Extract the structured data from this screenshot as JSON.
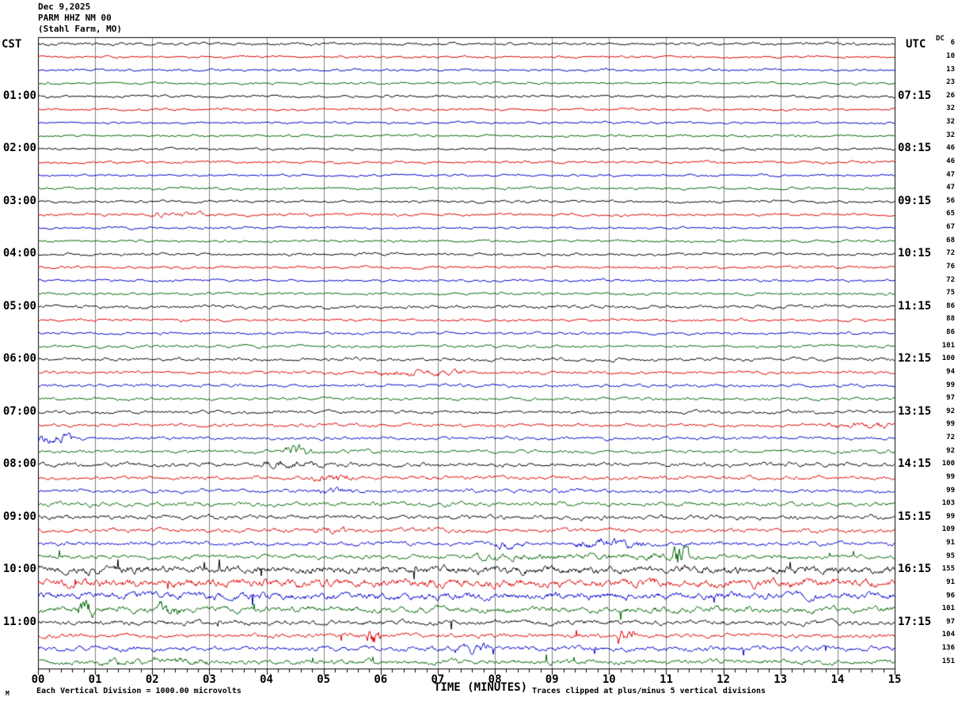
{
  "title": {
    "date": "Dec 9,2025",
    "station": "PARM HHZ NM 00",
    "location": "(Stahl Farm, MO)"
  },
  "axes": {
    "left_header": "CST",
    "right_header": "UTC",
    "dc_header": "DC",
    "x_title": "TIME (MINUTES)",
    "x_labels": [
      "00",
      "01",
      "02",
      "03",
      "04",
      "05",
      "06",
      "07",
      "08",
      "09",
      "10",
      "11",
      "12",
      "13",
      "14",
      "15"
    ]
  },
  "footer": {
    "scale_note": "Each Vertical Division = 1000.00 microvolts",
    "clip_note": "Traces clipped at plus/minus 5 vertical divisions",
    "watermark": "M"
  },
  "colors": {
    "trace_cycle": [
      "#000000",
      "#dd0000",
      "#0000cc",
      "#006600"
    ],
    "trace_cycle_names": [
      "black",
      "red",
      "blue",
      "green"
    ],
    "grid": "#808080",
    "border": "#000000",
    "background": "#ffffff"
  },
  "chart_data": {
    "type": "line",
    "subtype": "seismogram-helicorder",
    "title": "Dec 9,2025 PARM HHZ NM 00 (Stahl Farm, MO)",
    "xlabel": "TIME (MINUTES)",
    "x_range_minutes": [
      0,
      15
    ],
    "major_tick_every_minutes": 1,
    "minor_ticks_per_major": 5,
    "minutes_per_trace_line": 15,
    "row_fields": "cst = left CST hour label, utc = right UTC label, dc = right DC offset value, c = color index into colors.trace_cycle, a = noise amplitude (relative), b = bursts [{m:start minute, w:width minutes, f:amplitude factor}], s = spike probability",
    "rows": [
      {
        "dc": 6,
        "c": 0,
        "a": 1.1
      },
      {
        "dc": 10,
        "c": 1,
        "a": 0.9
      },
      {
        "dc": 13,
        "c": 2,
        "a": 0.9
      },
      {
        "dc": 23,
        "c": 3,
        "a": 0.95
      },
      {
        "cst": "01:00",
        "utc": "07:15",
        "dc": 26,
        "c": 0,
        "a": 1.0
      },
      {
        "dc": 32,
        "c": 1,
        "a": 0.95
      },
      {
        "dc": 32,
        "c": 2,
        "a": 0.9
      },
      {
        "dc": 32,
        "c": 3,
        "a": 0.95
      },
      {
        "cst": "02:00",
        "utc": "08:15",
        "dc": 46,
        "c": 0,
        "a": 1.0
      },
      {
        "dc": 46,
        "c": 1,
        "a": 1.0
      },
      {
        "dc": 47,
        "c": 2,
        "a": 0.9
      },
      {
        "dc": 47,
        "c": 3,
        "a": 1.0
      },
      {
        "cst": "03:00",
        "utc": "09:15",
        "dc": 56,
        "c": 0,
        "a": 1.05
      },
      {
        "dc": 65,
        "c": 1,
        "a": 1.05,
        "b": [
          {
            "m": 1.9,
            "w": 1.2,
            "f": 1.9
          }
        ]
      },
      {
        "dc": 67,
        "c": 2,
        "a": 0.95
      },
      {
        "dc": 68,
        "c": 3,
        "a": 1.0
      },
      {
        "cst": "04:00",
        "utc": "10:15",
        "dc": 72,
        "c": 0,
        "a": 1.1
      },
      {
        "dc": 76,
        "c": 1,
        "a": 1.05
      },
      {
        "dc": 72,
        "c": 2,
        "a": 0.95
      },
      {
        "dc": 75,
        "c": 3,
        "a": 1.05
      },
      {
        "cst": "05:00",
        "utc": "11:15",
        "dc": 86,
        "c": 0,
        "a": 1.4
      },
      {
        "dc": 88,
        "c": 1,
        "a": 1.1
      },
      {
        "dc": 86,
        "c": 2,
        "a": 1.1
      },
      {
        "dc": 101,
        "c": 3,
        "a": 1.15
      },
      {
        "cst": "06:00",
        "utc": "12:15",
        "dc": 100,
        "c": 0,
        "a": 1.35
      },
      {
        "dc": 94,
        "c": 1,
        "a": 1.25,
        "b": [
          {
            "m": 5.9,
            "w": 1.6,
            "f": 2.0
          }
        ]
      },
      {
        "dc": 99,
        "c": 2,
        "a": 1.2
      },
      {
        "dc": 97,
        "c": 3,
        "a": 1.2
      },
      {
        "cst": "07:00",
        "utc": "13:15",
        "dc": 92,
        "c": 0,
        "a": 1.4
      },
      {
        "dc": 99,
        "c": 1,
        "a": 1.3,
        "b": [
          {
            "m": 13.8,
            "w": 1.1,
            "f": 2.3
          }
        ]
      },
      {
        "dc": 72,
        "c": 2,
        "a": 1.3,
        "b": [
          {
            "m": 0.0,
            "w": 0.6,
            "f": 3.0
          }
        ]
      },
      {
        "dc": 92,
        "c": 3,
        "a": 1.35,
        "b": [
          {
            "m": 4.3,
            "w": 0.5,
            "f": 3.5
          }
        ]
      },
      {
        "cst": "08:00",
        "utc": "14:15",
        "dc": 100,
        "c": 0,
        "a": 1.7,
        "b": [
          {
            "m": 3.9,
            "w": 1.0,
            "f": 2.0
          }
        ]
      },
      {
        "dc": 99,
        "c": 1,
        "a": 1.5,
        "b": [
          {
            "m": 4.7,
            "w": 0.8,
            "f": 2.0
          }
        ]
      },
      {
        "dc": 99,
        "c": 2,
        "a": 1.5,
        "b": [
          {
            "m": 4.9,
            "w": 0.6,
            "f": 1.8
          }
        ]
      },
      {
        "dc": 103,
        "c": 3,
        "a": 1.7
      },
      {
        "cst": "09:00",
        "utc": "15:15",
        "dc": 99,
        "c": 0,
        "a": 1.8
      },
      {
        "dc": 109,
        "c": 1,
        "a": 1.7,
        "b": [
          {
            "m": 4.8,
            "w": 0.6,
            "f": 1.8
          }
        ]
      },
      {
        "dc": 91,
        "c": 2,
        "a": 1.7,
        "b": [
          {
            "m": 8.0,
            "w": 0.5,
            "f": 2.2
          },
          {
            "m": 9.4,
            "w": 1.2,
            "f": 2.2
          }
        ]
      },
      {
        "dc": 95,
        "c": 3,
        "a": 1.8,
        "s": 0.001,
        "b": [
          {
            "m": 7.6,
            "w": 4.0,
            "f": 1.6
          },
          {
            "m": 11.1,
            "w": 0.3,
            "f": 4.0
          }
        ]
      },
      {
        "cst": "10:00",
        "utc": "16:15",
        "dc": 155,
        "c": 0,
        "a": 3.2,
        "s": 0.005
      },
      {
        "dc": 91,
        "c": 1,
        "a": 3.4,
        "s": 0.005
      },
      {
        "dc": 96,
        "c": 2,
        "a": 2.9,
        "s": 0.004
      },
      {
        "dc": 101,
        "c": 3,
        "a": 2.5,
        "s": 0.003,
        "b": [
          {
            "m": 0.7,
            "w": 0.3,
            "f": 3.0
          },
          {
            "m": 2.1,
            "w": 0.4,
            "f": 3.0
          }
        ]
      },
      {
        "cst": "11:00",
        "utc": "17:15",
        "dc": 97,
        "c": 0,
        "a": 2.0,
        "s": 0.002
      },
      {
        "dc": 104,
        "c": 1,
        "a": 1.8,
        "s": 0.002,
        "b": [
          {
            "m": 5.75,
            "w": 0.25,
            "f": 4.5
          },
          {
            "m": 10.15,
            "w": 0.3,
            "f": 3.5
          }
        ]
      },
      {
        "dc": 136,
        "c": 2,
        "a": 2.0,
        "s": 0.003,
        "b": [
          {
            "m": 7.3,
            "w": 0.6,
            "f": 2.2
          }
        ]
      },
      {
        "dc": 151,
        "c": 3,
        "a": 2.0,
        "s": 0.003,
        "b": [
          {
            "m": 1.0,
            "w": 2.0,
            "f": 1.5
          }
        ]
      }
    ]
  }
}
